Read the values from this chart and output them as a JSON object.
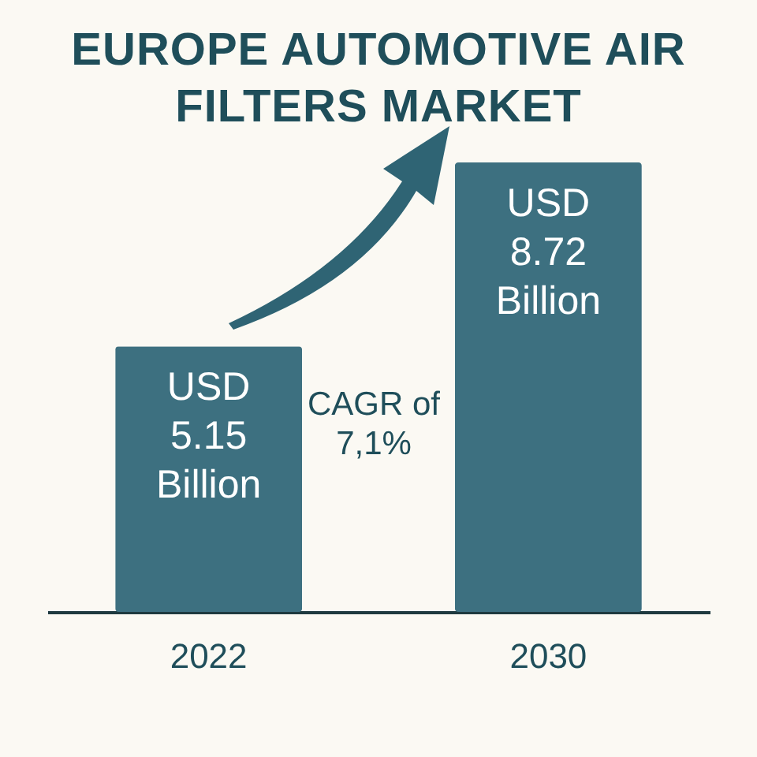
{
  "chart_data": {
    "type": "bar",
    "title": "EUROPE AUTOMOTIVE AIR FILTERS MARKET",
    "categories": [
      "2022",
      "2030"
    ],
    "values": [
      5.15,
      8.72
    ],
    "value_labels": [
      "USD 5.15 Billion",
      "USD 8.72 Billion"
    ],
    "color": "#3d7080",
    "annotations": [
      "CAGR of 7,1%"
    ]
  }
}
